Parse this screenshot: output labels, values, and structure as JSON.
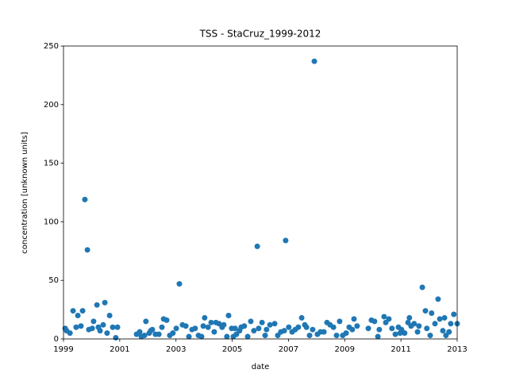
{
  "chart_data": {
    "type": "scatter",
    "title": "TSS - StaCruz_1999-2012",
    "x_label": "date",
    "y_label": "concentration [unknown units]",
    "color": "#1f77b4",
    "xlim": [
      1999,
      2013
    ],
    "xticks": [
      1999,
      2001,
      2003,
      2005,
      2007,
      2009,
      2011,
      2013
    ],
    "ylim": [
      0,
      250
    ],
    "yticks": [
      0,
      50,
      100,
      150,
      200,
      250
    ],
    "x": [
      1999.06,
      1999.11,
      1999.23,
      1999.34,
      1999.45,
      1999.51,
      1999.62,
      1999.68,
      1999.76,
      1999.85,
      1999.9,
      2000.02,
      2000.07,
      2000.19,
      2000.24,
      2000.3,
      2000.41,
      2000.47,
      2000.55,
      2000.64,
      2000.75,
      2000.86,
      2000.92,
      2001.6,
      2001.71,
      2001.77,
      2001.88,
      2001.93,
      2002.05,
      2002.1,
      2002.16,
      2002.27,
      2002.39,
      2002.5,
      2002.56,
      2002.67,
      2002.78,
      2002.89,
      2003.01,
      2003.12,
      2003.23,
      2003.35,
      2003.46,
      2003.57,
      2003.68,
      2003.8,
      2003.91,
      2003.97,
      2004.02,
      2004.14,
      2004.25,
      2004.36,
      2004.42,
      2004.53,
      2004.64,
      2004.7,
      2004.81,
      2004.87,
      2004.98,
      2005.04,
      2005.1,
      2005.15,
      2005.26,
      2005.32,
      2005.43,
      2005.55,
      2005.66,
      2005.77,
      2005.89,
      2005.94,
      2006.06,
      2006.17,
      2006.22,
      2006.34,
      2006.51,
      2006.62,
      2006.73,
      2006.85,
      2006.9,
      2007.01,
      2007.13,
      2007.24,
      2007.35,
      2007.47,
      2007.58,
      2007.64,
      2007.75,
      2007.86,
      2007.92,
      2008.03,
      2008.14,
      2008.26,
      2008.37,
      2008.48,
      2008.6,
      2008.71,
      2008.82,
      2008.93,
      2009.05,
      2009.16,
      2009.27,
      2009.33,
      2009.44,
      2009.84,
      2009.95,
      2010.06,
      2010.18,
      2010.23,
      2010.4,
      2010.46,
      2010.57,
      2010.68,
      2010.8,
      2010.91,
      2010.97,
      2011.02,
      2011.13,
      2011.25,
      2011.3,
      2011.36,
      2011.47,
      2011.59,
      2011.64,
      2011.76,
      2011.87,
      2011.92,
      2012.04,
      2012.09,
      2012.21,
      2012.32,
      2012.38,
      2012.49,
      2012.55,
      2012.6,
      2012.71,
      2012.77,
      2012.88,
      2013.0
    ],
    "values": [
      9,
      7,
      5,
      24,
      10,
      20,
      11,
      24,
      119,
      76,
      8,
      9,
      15,
      29,
      10,
      7,
      12,
      31,
      5,
      20,
      10,
      1,
      10,
      4,
      6,
      2,
      3,
      15,
      5,
      7,
      8,
      4,
      4,
      10,
      17,
      16,
      3,
      5,
      9,
      47,
      12,
      11,
      2,
      8,
      9,
      3,
      2,
      11,
      18,
      10,
      14,
      6,
      14,
      13,
      10,
      12,
      2,
      20,
      9,
      2,
      9,
      4,
      7,
      10,
      11,
      2,
      15,
      7,
      79,
      9,
      14,
      3,
      8,
      12,
      13,
      3,
      6,
      7,
      84,
      10,
      6,
      8,
      10,
      18,
      12,
      10,
      3,
      8,
      237,
      4,
      6,
      6,
      14,
      12,
      10,
      3,
      15,
      3,
      5,
      10,
      8,
      17,
      11,
      9,
      16,
      15,
      2,
      8,
      19,
      14,
      17,
      9,
      4,
      10,
      5,
      8,
      5,
      14,
      18,
      11,
      13,
      6,
      11,
      44,
      24,
      9,
      3,
      22,
      13,
      34,
      17,
      7,
      18,
      3,
      6,
      13,
      21,
      13
    ]
  }
}
